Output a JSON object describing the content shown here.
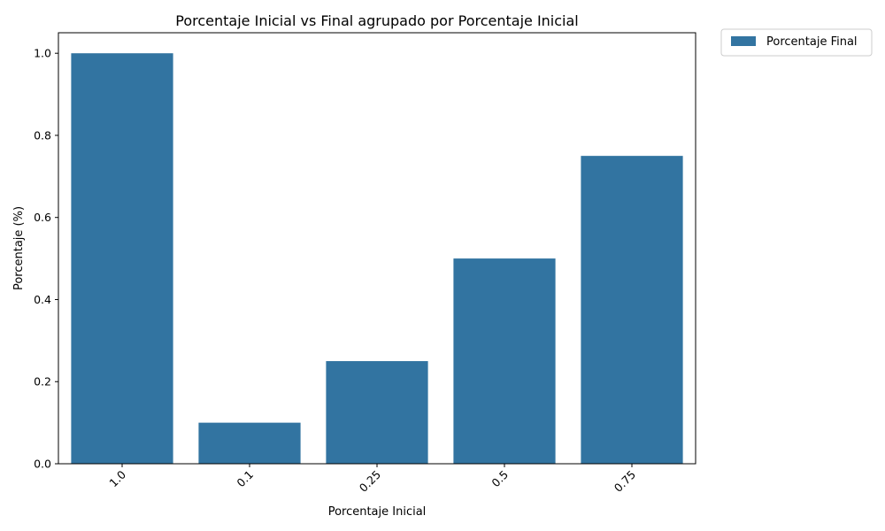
{
  "chart_data": {
    "type": "bar",
    "title": "Porcentaje Inicial vs Final agrupado por Porcentaje Inicial",
    "xlabel": "Porcentaje Inicial",
    "ylabel": "Porcentaje (%)",
    "categories": [
      "1.0",
      "0.1",
      "0.25",
      "0.5",
      "0.75"
    ],
    "series": [
      {
        "name": "Porcentaje Final",
        "values": [
          1.0,
          0.1,
          0.25,
          0.5,
          0.75
        ]
      }
    ],
    "ylim": [
      0,
      1.05
    ],
    "yticks": [
      "0.0",
      "0.2",
      "0.4",
      "0.6",
      "0.8",
      "1.0"
    ],
    "grid": false,
    "legend_position": "outside-top-right",
    "bar_color": "#3274a1"
  }
}
